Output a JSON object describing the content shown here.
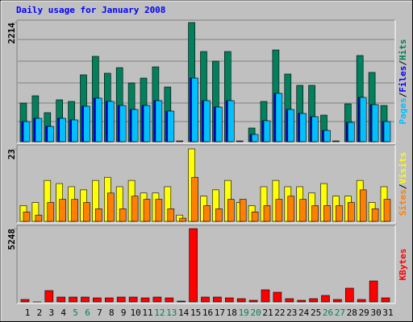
{
  "chart_data": {
    "type": "bar",
    "title": "Daily usage for January 2008",
    "title_color": "#0000ff",
    "categories": [
      "1",
      "2",
      "3",
      "4",
      "5",
      "6",
      "7",
      "8",
      "9",
      "10",
      "11",
      "12",
      "13",
      "14",
      "15",
      "16",
      "17",
      "18",
      "19",
      "20",
      "21",
      "22",
      "23",
      "24",
      "25",
      "26",
      "27",
      "28",
      "29",
      "30",
      "31"
    ],
    "category_colors": [
      "#000000",
      "#000000",
      "#000000",
      "#000000",
      "#00805c",
      "#00805c",
      "#000000",
      "#000000",
      "#000000",
      "#000000",
      "#000000",
      "#00805c",
      "#00805c",
      "#000000",
      "#000000",
      "#000000",
      "#000000",
      "#000000",
      "#00805c",
      "#00805c",
      "#000000",
      "#000000",
      "#000000",
      "#000000",
      "#000000",
      "#00805c",
      "#00805c",
      "#000000",
      "#000000",
      "#000000",
      "#000000"
    ],
    "legend_separator": "/",
    "panels": [
      {
        "ylim": [
          0,
          2214
        ],
        "yticks": [
          2214
        ],
        "series": [
          {
            "name": "Hits",
            "color": "#00805c",
            "values": [
              718,
              853,
              539,
              778,
              748,
              1242,
              1586,
              1272,
              1376,
              1092,
              1182,
              1391,
              1017,
              15,
              2214,
              1675,
              1496,
              1675,
              15,
              254,
              748,
              1705,
              1257,
              1047,
              1047,
              494,
              15,
              703,
              1601,
              1287,
              673
            ]
          },
          {
            "name": "Files",
            "color": "#0000ff",
            "values": [
              374,
              434,
              284,
              434,
              404,
              658,
              808,
              748,
              673,
              598,
              673,
              763,
              568,
              0,
              1182,
              763,
              643,
              763,
              0,
              135,
              389,
              898,
              598,
              524,
              464,
              209,
              0,
              359,
              823,
              688,
              374
            ]
          },
          {
            "name": "Pages",
            "color": "#00c0ff",
            "values": [
              374,
              434,
              284,
              434,
              404,
              658,
              808,
              748,
              673,
              598,
              673,
              763,
              568,
              0,
              1182,
              763,
              643,
              763,
              0,
              135,
              389,
              898,
              598,
              524,
              464,
              209,
              0,
              359,
              823,
              688,
              374
            ]
          }
        ]
      },
      {
        "ylim": [
          0,
          23
        ],
        "yticks": [
          23
        ],
        "series": [
          {
            "name": "Visits",
            "color": "#ffff00",
            "values": [
              5,
              6,
              13,
              12,
              11,
              10,
              13,
              14,
              11,
              13,
              9,
              9,
              11,
              2,
              23,
              8,
              10,
              13,
              6,
              5,
              11,
              13,
              11,
              11,
              9,
              12,
              8,
              8,
              13,
              6,
              11
            ]
          },
          {
            "name": "Sites",
            "color": "#ff8000",
            "values": [
              3,
              2,
              6,
              7,
              7,
              6,
              4,
              9,
              4,
              8,
              7,
              7,
              4,
              1,
              14,
              5,
              4,
              7,
              7,
              3,
              5,
              7,
              8,
              7,
              5,
              5,
              5,
              6,
              10,
              4,
              7
            ]
          }
        ]
      },
      {
        "ylim": [
          0,
          5248
        ],
        "yticks": [
          5248
        ],
        "series": [
          {
            "name": "KBytes",
            "color": "#ff0000",
            "values": [
              173,
              1,
              808,
              346,
              346,
              346,
              288,
              288,
              346,
              346,
              288,
              346,
              288,
              58,
              5248,
              346,
              346,
              288,
              231,
              115,
              865,
              692,
              231,
              115,
              231,
              461,
              173,
              981,
              173,
              1500,
              288
            ]
          }
        ]
      }
    ]
  }
}
